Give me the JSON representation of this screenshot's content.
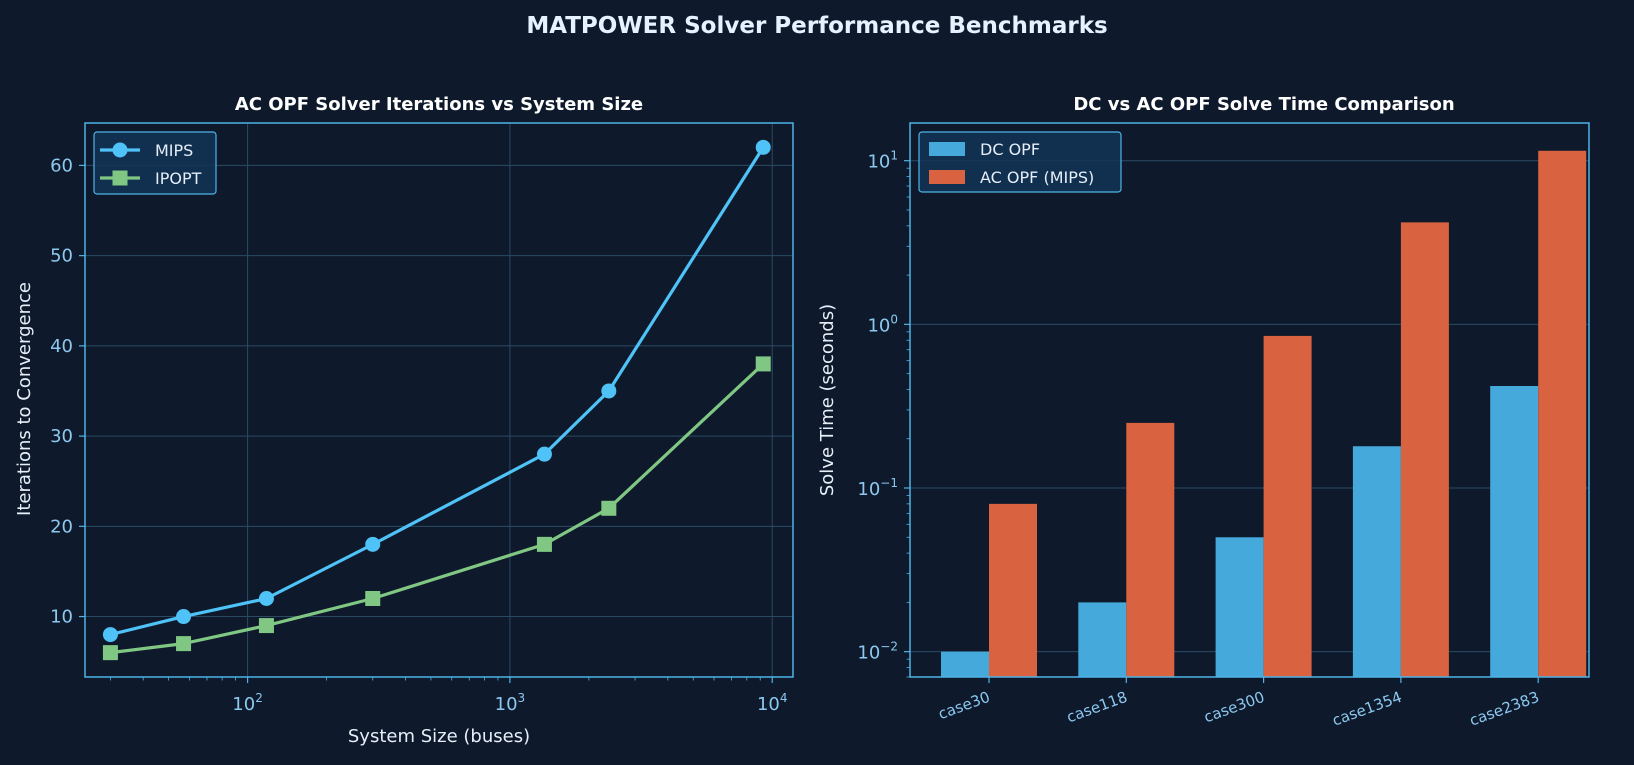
{
  "figure": {
    "title": "MATPOWER Solver Performance Benchmarks",
    "background": "#0e1a2b",
    "grid_color": "#2a4a64",
    "spine_color": "#4fb3e8",
    "tick_color": "#8cc8f0"
  },
  "chart_data": [
    {
      "type": "line",
      "title": "AC OPF Solver Iterations vs System Size",
      "xlabel": "System Size (buses)",
      "ylabel": "Iterations to Convergence",
      "xscale": "log",
      "xlim": [
        24,
        12000
      ],
      "ylim": [
        3.3,
        64.7
      ],
      "x_ticks": [
        {
          "base": "10",
          "exp": "2",
          "value": 100
        },
        {
          "base": "10",
          "exp": "3",
          "value": 1000
        },
        {
          "base": "10",
          "exp": "4",
          "value": 10000
        }
      ],
      "y_ticks": [
        10,
        20,
        30,
        40,
        50,
        60
      ],
      "grid": true,
      "legend_position": "top-left",
      "x": [
        30,
        57,
        118,
        300,
        1354,
        2383,
        9241
      ],
      "series": [
        {
          "name": "MIPS",
          "values": [
            8,
            10,
            12,
            18,
            28,
            35,
            62
          ],
          "color": "#4fc3f7",
          "marker": "circle"
        },
        {
          "name": "IPOPT",
          "values": [
            6,
            7,
            9,
            12,
            18,
            22,
            38
          ],
          "color": "#81c784",
          "marker": "square"
        }
      ]
    },
    {
      "type": "bar",
      "title": "DC vs AC OPF Solve Time Comparison",
      "xlabel": "",
      "ylabel": "Solve Time (seconds)",
      "yscale": "log",
      "ylim": [
        0.007,
        17
      ],
      "y_ticks": [
        {
          "base": "10",
          "exp": "−2",
          "value": 0.01
        },
        {
          "base": "10",
          "exp": "−1",
          "value": 0.1
        },
        {
          "base": "10",
          "exp": "0",
          "value": 1
        },
        {
          "base": "10",
          "exp": "1",
          "value": 10
        }
      ],
      "grid": true,
      "legend_position": "top-left",
      "categories": [
        "case30",
        "case118",
        "case300",
        "case1354",
        "case2383"
      ],
      "series": [
        {
          "name": "DC OPF",
          "values": [
            0.01,
            0.02,
            0.05,
            0.18,
            0.42
          ],
          "color": "#45a9db"
        },
        {
          "name": "AC OPF (MIPS)",
          "values": [
            0.08,
            0.25,
            0.85,
            4.2,
            11.5
          ],
          "color": "#d96240"
        }
      ]
    }
  ]
}
